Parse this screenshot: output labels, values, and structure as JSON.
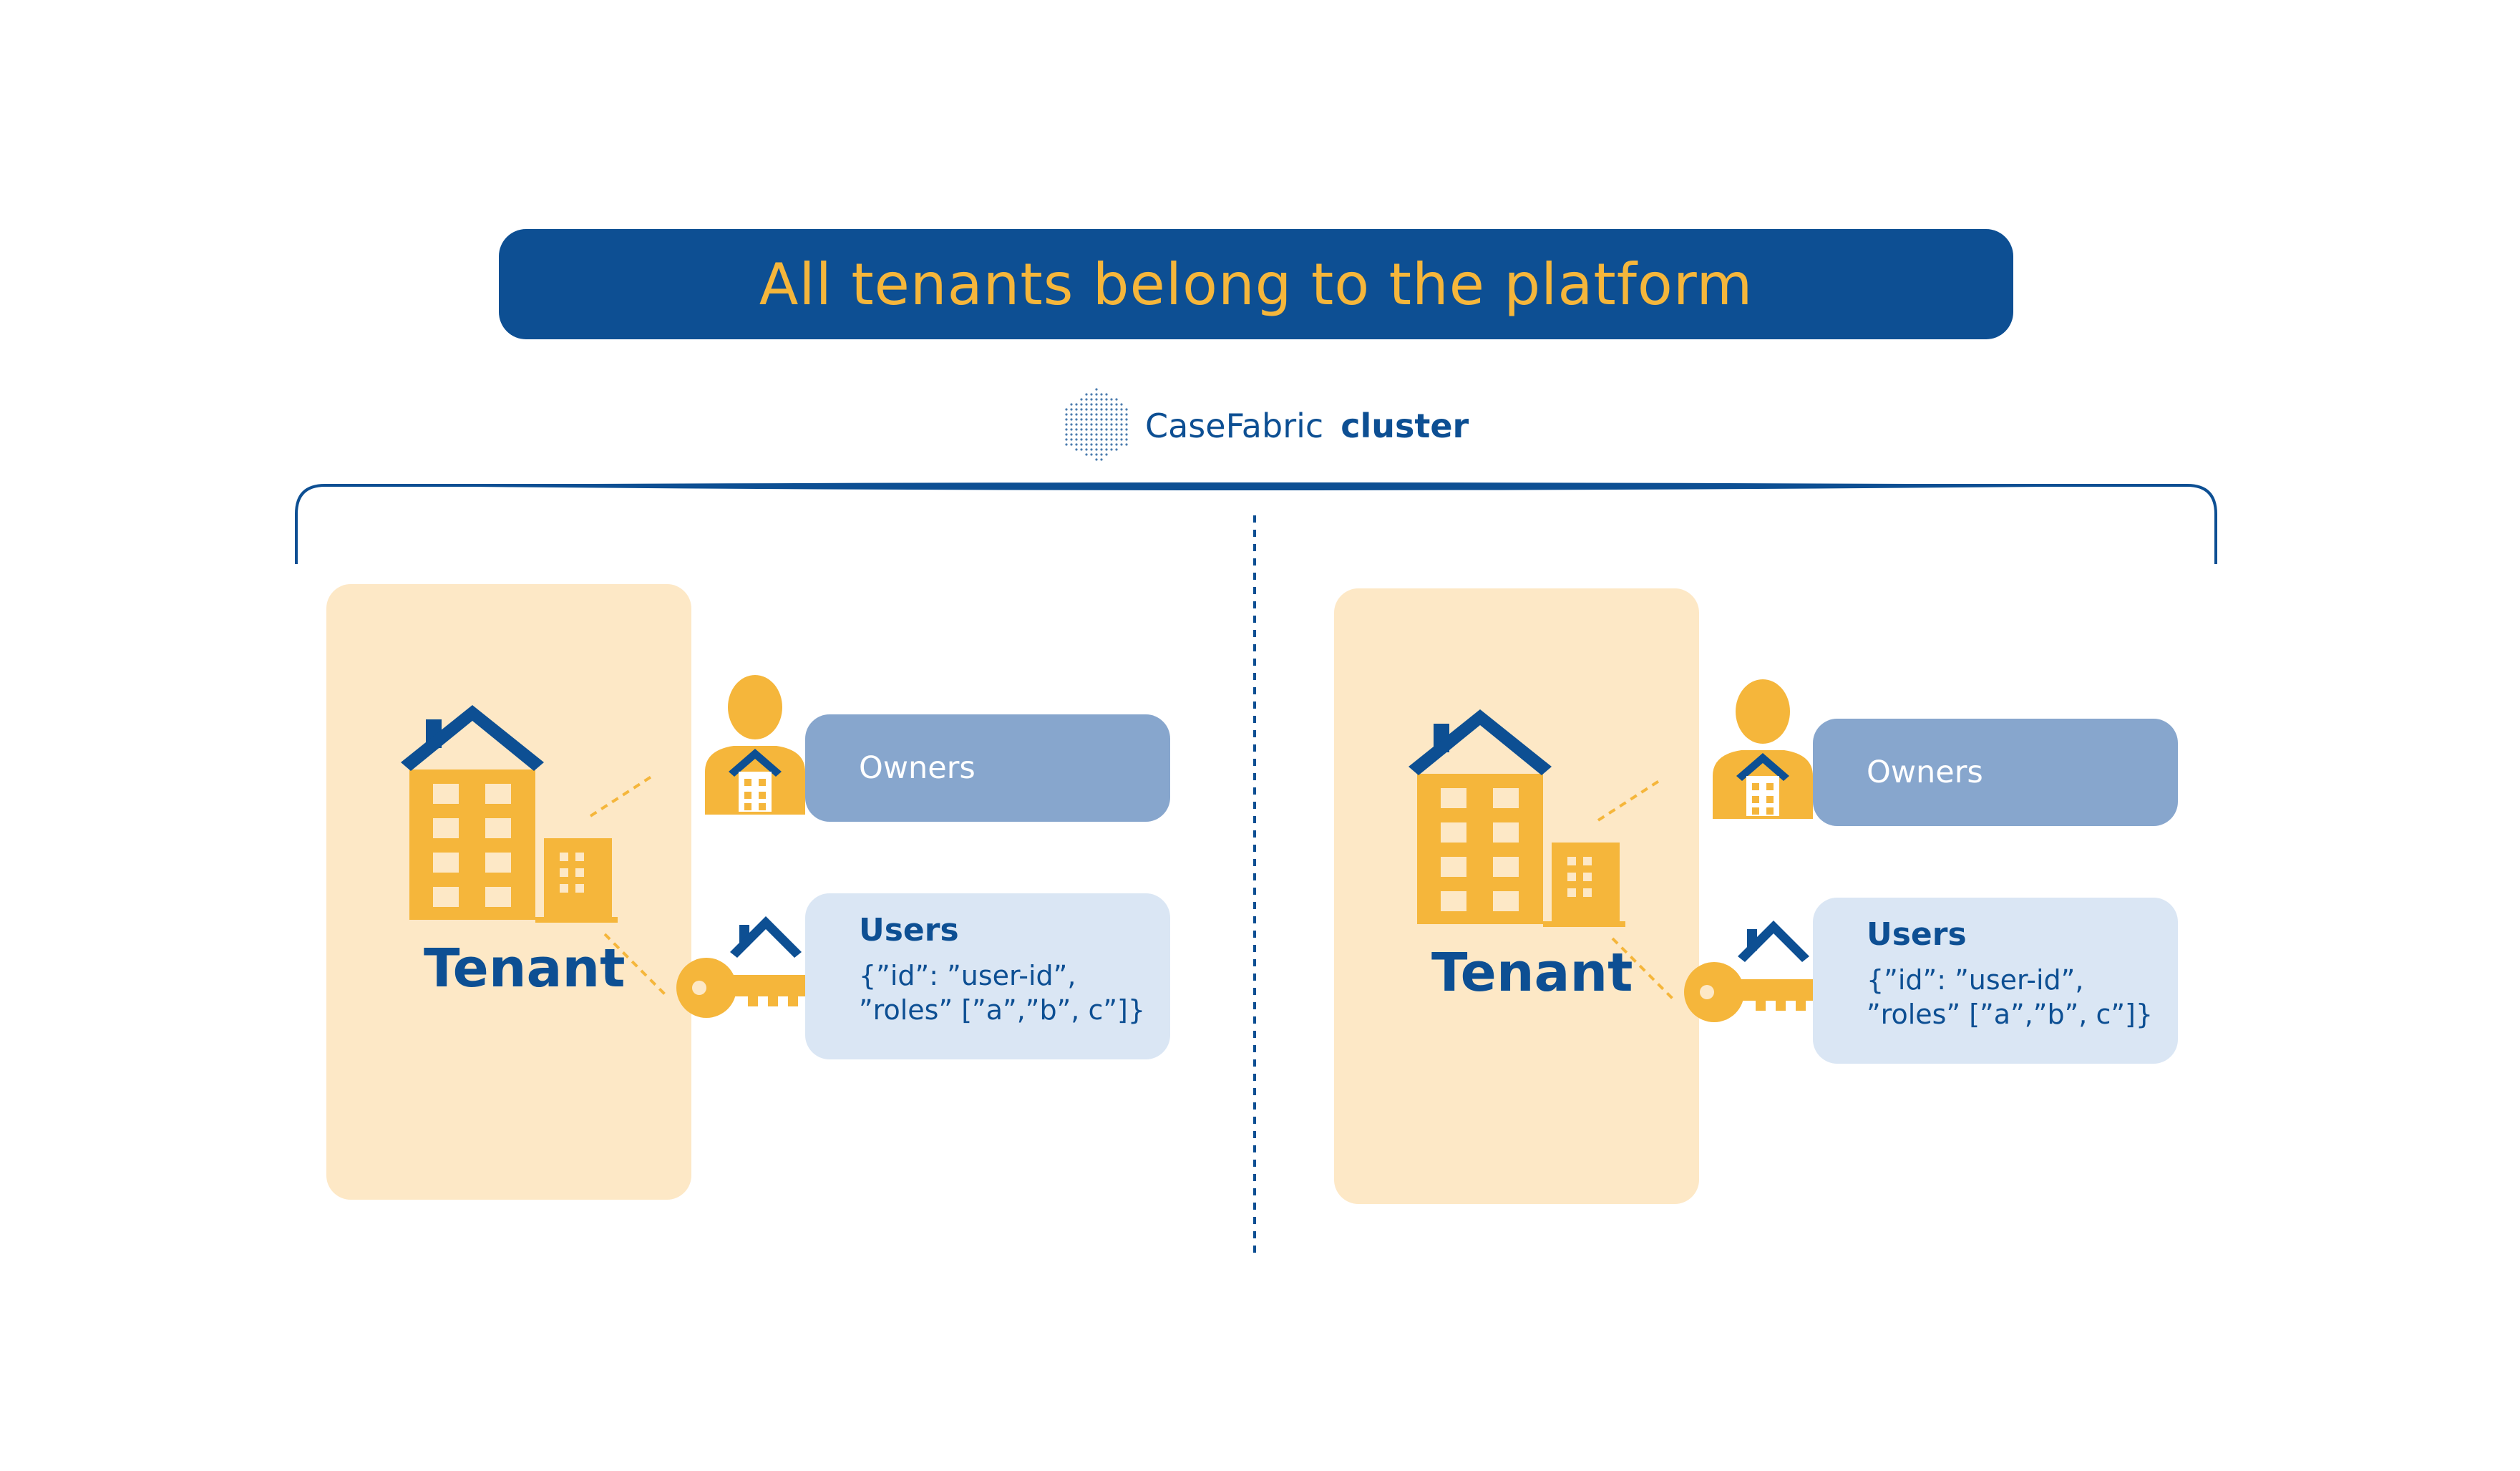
{
  "header": {
    "title": "All tenants belong to the platform"
  },
  "cluster": {
    "brand": "CaseFabric",
    "word": "cluster"
  },
  "tenants": [
    {
      "label": "Tenant",
      "owners_label": "Owners",
      "users_label": "Users",
      "users_line1": "{”id”: ”user-id”,",
      "users_line2": "”roles” [”a”,”b”, c”]}"
    },
    {
      "label": "Tenant",
      "owners_label": "Owners",
      "users_label": "Users",
      "users_line1": "{”id”: ”user-id”,",
      "users_line2": "”roles” [”a”,”b”, c”]}"
    }
  ],
  "colors": {
    "navy": "#0d4f93",
    "amber": "#f5b63b",
    "tenant_bg": "#fde8c6",
    "owners_bg": "#87a6cd",
    "users_bg": "#dae6f4"
  },
  "icons": [
    "building-icon",
    "owner-person-icon",
    "key-icon",
    "cluster-logo-icon"
  ]
}
